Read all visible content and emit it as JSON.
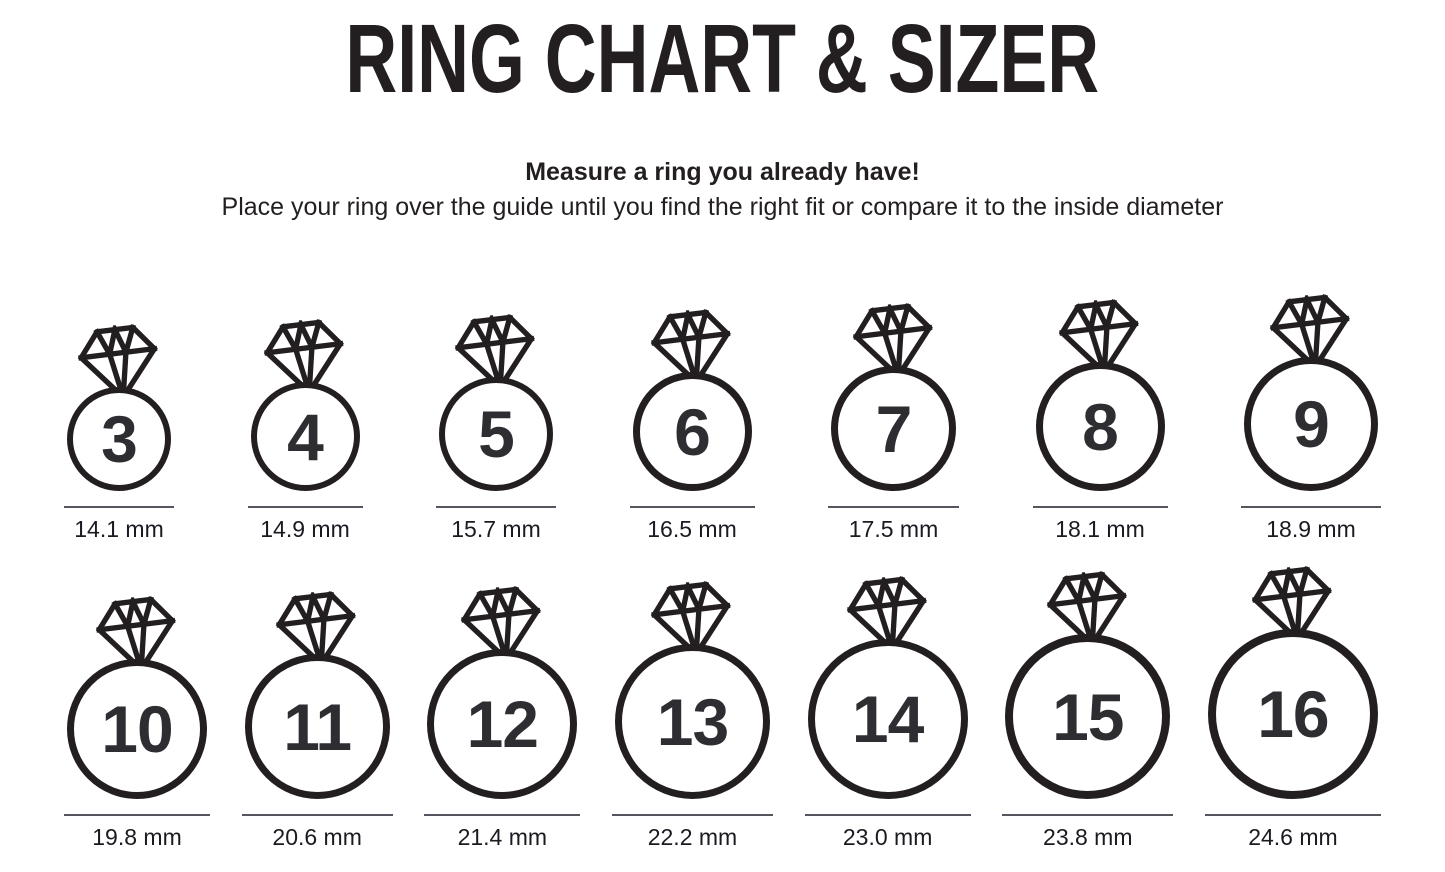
{
  "title": "RING CHART & SIZER",
  "instructions": {
    "heading": "Measure a ring you already have!",
    "body": "Place your ring over the guide until you find the right fit or compare it to the inside diameter"
  },
  "unit": "mm",
  "rings": {
    "rows": [
      [
        {
          "size": "3",
          "diameter_label": "14.1 mm"
        },
        {
          "size": "4",
          "diameter_label": "14.9 mm"
        },
        {
          "size": "5",
          "diameter_label": "15.7 mm"
        },
        {
          "size": "6",
          "diameter_label": "16.5 mm"
        },
        {
          "size": "7",
          "diameter_label": "17.5 mm"
        },
        {
          "size": "8",
          "diameter_label": "18.1 mm"
        },
        {
          "size": "9",
          "diameter_label": "18.9 mm"
        }
      ],
      [
        {
          "size": "10",
          "diameter_label": "19.8 mm"
        },
        {
          "size": "11",
          "diameter_label": "20.6 mm"
        },
        {
          "size": "12",
          "diameter_label": "21.4 mm"
        },
        {
          "size": "13",
          "diameter_label": "22.2 mm"
        },
        {
          "size": "14",
          "diameter_label": "23.0 mm"
        },
        {
          "size": "15",
          "diameter_label": "23.8 mm"
        },
        {
          "size": "16",
          "diameter_label": "24.6 mm"
        }
      ]
    ]
  },
  "colors": {
    "ink": "#231f20",
    "number": "#2e2d31",
    "underline": "#56555f",
    "label": "#1a1a21"
  }
}
